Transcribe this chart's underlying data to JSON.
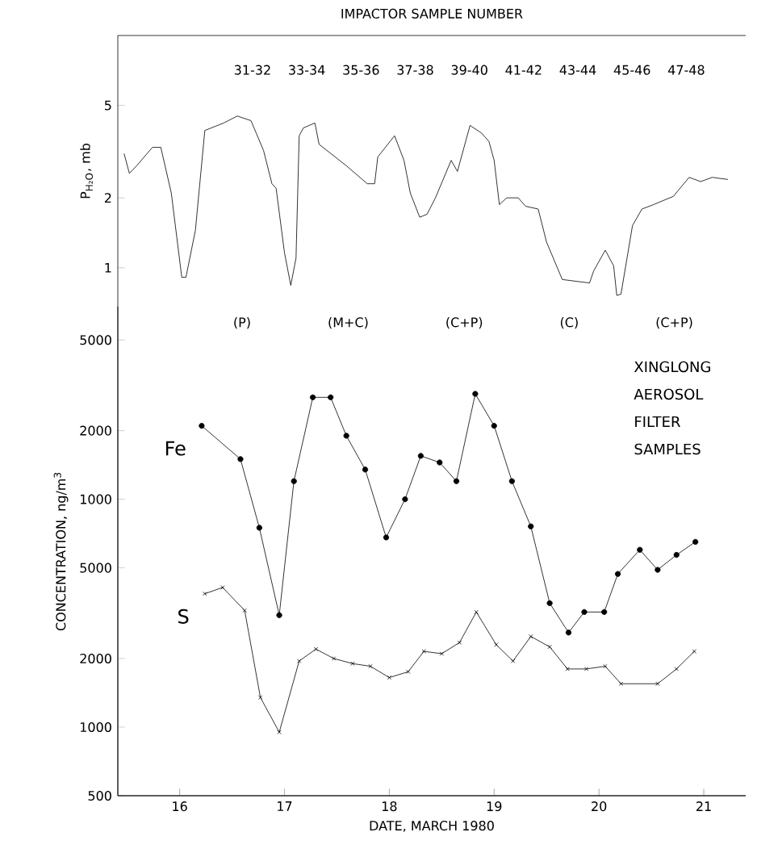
{
  "chart_data": [
    {
      "type": "line",
      "title": "IMPACTOR SAMPLE NUMBER",
      "ylabel": "P$_{H₂O}$, mb",
      "log": "y",
      "color": "#000000",
      "tick_labels": "y",
      "xlim": [
        15.41,
        21.4
      ],
      "ylim": [
        0.68,
        10
      ],
      "yticks": [
        1,
        2,
        5
      ],
      "x": [
        15.47,
        15.52,
        15.59,
        15.74,
        15.82,
        15.92,
        16.02,
        16.06,
        16.15,
        16.24,
        16.42,
        16.55,
        16.68,
        16.8,
        16.88,
        16.92,
        17.0,
        17.06,
        17.11,
        17.14,
        17.18,
        17.29,
        17.33,
        17.59,
        17.79,
        17.86,
        17.89,
        18.05,
        18.14,
        18.2,
        18.29,
        18.36,
        18.44,
        18.59,
        18.65,
        18.77,
        18.88,
        18.95,
        19.0,
        19.05,
        19.12,
        19.23,
        19.3,
        19.42,
        19.5,
        19.65,
        19.91,
        19.95,
        20.06,
        20.14,
        20.17,
        20.21,
        20.32,
        20.41,
        20.52,
        20.71,
        20.86,
        20.97,
        21.08,
        21.23
      ],
      "values": [
        3.1,
        2.55,
        2.75,
        3.3,
        3.3,
        2.1,
        0.91,
        0.91,
        1.45,
        3.9,
        4.2,
        4.5,
        4.3,
        3.2,
        2.3,
        2.2,
        1.16,
        0.84,
        1.1,
        3.7,
        4.0,
        4.2,
        3.4,
        2.75,
        2.3,
        2.3,
        3.0,
        3.7,
        2.9,
        2.1,
        1.65,
        1.7,
        2.0,
        2.9,
        2.6,
        4.1,
        3.8,
        3.5,
        2.9,
        1.87,
        2.0,
        2.0,
        1.84,
        1.79,
        1.29,
        0.89,
        0.86,
        0.97,
        1.19,
        1.02,
        0.76,
        0.77,
        1.52,
        1.79,
        1.87,
        2.03,
        2.45,
        2.35,
        2.45,
        2.4
      ],
      "annotations": [
        "31-32",
        "33-34",
        "35-36",
        "37-38",
        "39-40",
        "41-42",
        "43-44",
        "45-46",
        "47-48"
      ]
    },
    {
      "type": "line",
      "log": "y",
      "tick_labels": "y",
      "xlim": [
        15.41,
        21.4
      ],
      "xticks": [
        16,
        17,
        18,
        19,
        20,
        21
      ],
      "ylim": [
        50,
        7000
      ],
      "yticks": [
        1000,
        2000,
        5000
      ],
      "series": [
        {
          "name": "Fe",
          "color": "#000000",
          "marker": "circle",
          "x": [
            16.21,
            16.58,
            16.76,
            16.95,
            17.09,
            17.27,
            17.44,
            17.59,
            17.77,
            17.97,
            18.15,
            18.3,
            18.48,
            18.64,
            18.82,
            19.0,
            19.17,
            19.35,
            19.53,
            19.71,
            19.86,
            20.05,
            20.18,
            20.39,
            20.56,
            20.74,
            20.92
          ],
          "values": [
            2100,
            1500,
            750,
            310,
            1200,
            2800,
            2800,
            1900,
            1350,
            680,
            1000,
            1550,
            1450,
            1200,
            2900,
            2100,
            1200,
            760,
            350,
            260,
            320,
            320,
            470,
            600,
            490,
            570,
            650
          ]
        }
      ]
    },
    {
      "type": "line",
      "xlabel": "DATE, MARCH 1980",
      "ylabel": "CONCENTRATION, ng/m$^{3}$",
      "log": "y",
      "xlim": [
        15.41,
        21.4
      ],
      "xticks": [
        16,
        17,
        18,
        19,
        20,
        21
      ],
      "ylim": [
        500,
        70000
      ],
      "yticks": [
        500,
        1000,
        2000,
        5000
      ],
      "series": [
        {
          "name": "S",
          "color": "#000000",
          "marker": "cross",
          "x": [
            16.24,
            16.41,
            16.62,
            16.77,
            16.95,
            17.14,
            17.3,
            17.47,
            17.65,
            17.82,
            18.0,
            18.18,
            18.33,
            18.5,
            18.67,
            18.83,
            19.02,
            19.18,
            19.35,
            19.53,
            19.7,
            19.88,
            20.06,
            20.21,
            20.56,
            20.74,
            20.91
          ],
          "values": [
            3850,
            4100,
            3250,
            1350,
            950,
            1950,
            2200,
            2000,
            1900,
            1850,
            1650,
            1750,
            2150,
            2100,
            2350,
            3200,
            2300,
            1950,
            2500,
            2250,
            1800,
            1800,
            1850,
            1550,
            1550,
            1800,
            2150
          ]
        }
      ],
      "title": "XINGLONG AEROSOL FILTER SAMPLES",
      "annotations": [
        "(P)",
        "(M+C)",
        "(C+P)",
        "(C)",
        "(C+P)"
      ]
    }
  ]
}
